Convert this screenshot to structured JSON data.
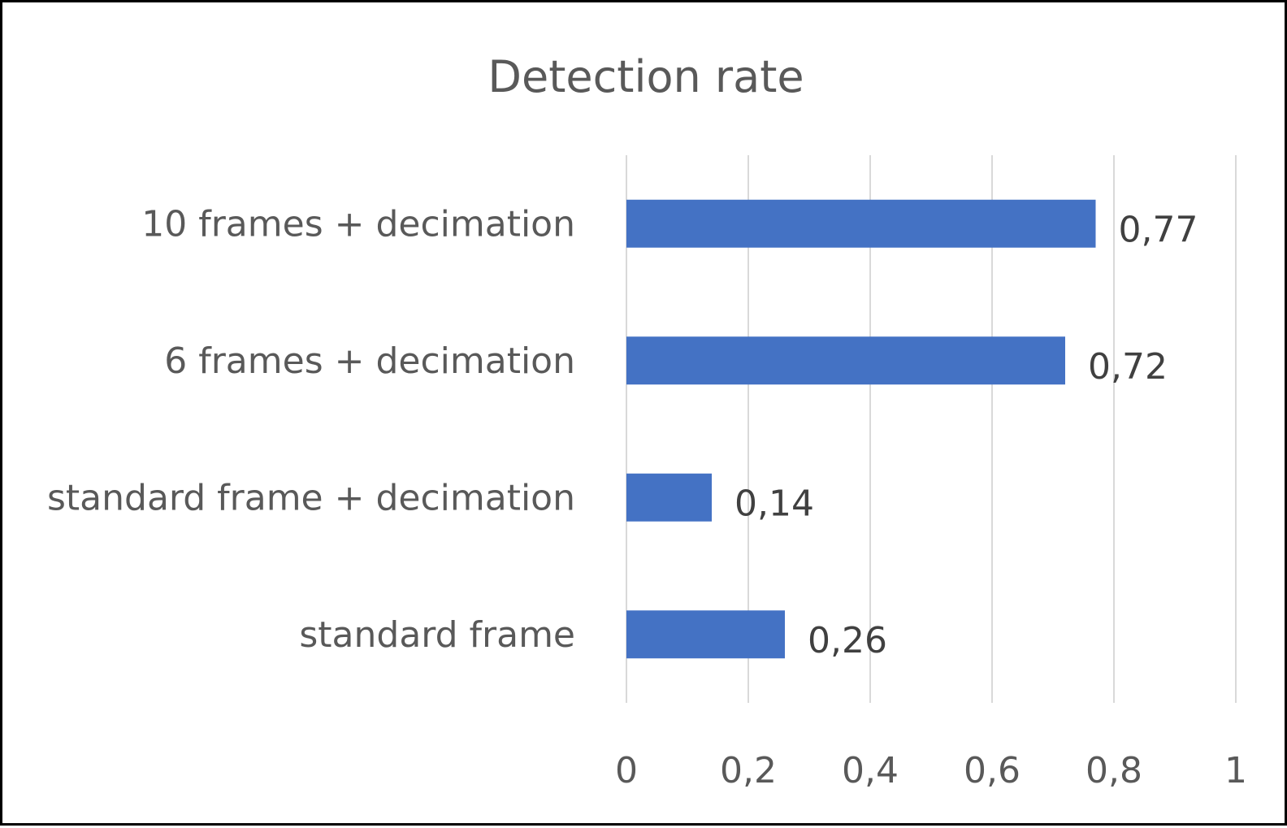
{
  "chart_data": {
    "type": "bar",
    "orientation": "horizontal",
    "title": "Detection rate",
    "xlabel": "",
    "ylabel": "",
    "categories": [
      "10 frames + decimation",
      "6 frames + decimation",
      "standard frame + decimation",
      "standard frame"
    ],
    "values": [
      0.77,
      0.72,
      0.14,
      0.26
    ],
    "data_labels": [
      "0,77",
      "0,72",
      "0,14",
      "0,26"
    ],
    "xlim": [
      0,
      1
    ],
    "ticks": [
      0,
      0.2,
      0.4,
      0.6,
      0.8,
      1
    ],
    "tick_labels": [
      "0",
      "0,2",
      "0,4",
      "0,6",
      "0,8",
      "1"
    ],
    "grid": "vertical",
    "legend": "none",
    "bar_color": "#4472C4",
    "gridline_color": "#D9D9D9"
  }
}
